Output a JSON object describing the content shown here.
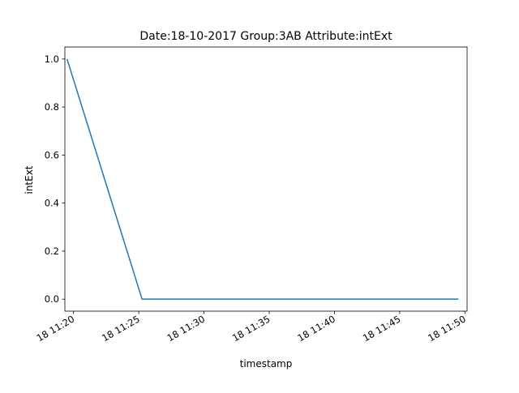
{
  "chart_data": {
    "type": "line",
    "title": "Date:18-10-2017  Group:3AB Attribute:intExt",
    "xlabel": "timestamp",
    "ylabel": "intExt",
    "x_axis_kind": "time",
    "xlim": [
      "2017-10-18 11:19:20",
      "2017-10-18 11:50:10"
    ],
    "ylim": [
      -0.05,
      1.05
    ],
    "grid": false,
    "x_ticks": [
      {
        "value": "2017-10-18 11:20",
        "label": "18 11:20"
      },
      {
        "value": "2017-10-18 11:25",
        "label": "18 11:25"
      },
      {
        "value": "2017-10-18 11:30",
        "label": "18 11:30"
      },
      {
        "value": "2017-10-18 11:35",
        "label": "18 11:35"
      },
      {
        "value": "2017-10-18 11:40",
        "label": "18 11:40"
      },
      {
        "value": "2017-10-18 11:45",
        "label": "18 11:45"
      },
      {
        "value": "2017-10-18 11:50",
        "label": "18 11:50"
      }
    ],
    "y_ticks": [
      {
        "value": 0.0,
        "label": "0.0"
      },
      {
        "value": 0.2,
        "label": "0.2"
      },
      {
        "value": 0.4,
        "label": "0.4"
      },
      {
        "value": 0.6,
        "label": "0.6"
      },
      {
        "value": 0.8,
        "label": "0.8"
      },
      {
        "value": 1.0,
        "label": "1.0"
      }
    ],
    "series": [
      {
        "color": "#1f77b4",
        "x": [
          "2017-10-18 11:19:30",
          "2017-10-18 11:25:15",
          "2017-10-18 11:49:30"
        ],
        "y": [
          1.0,
          0.0,
          0.0
        ]
      }
    ]
  }
}
